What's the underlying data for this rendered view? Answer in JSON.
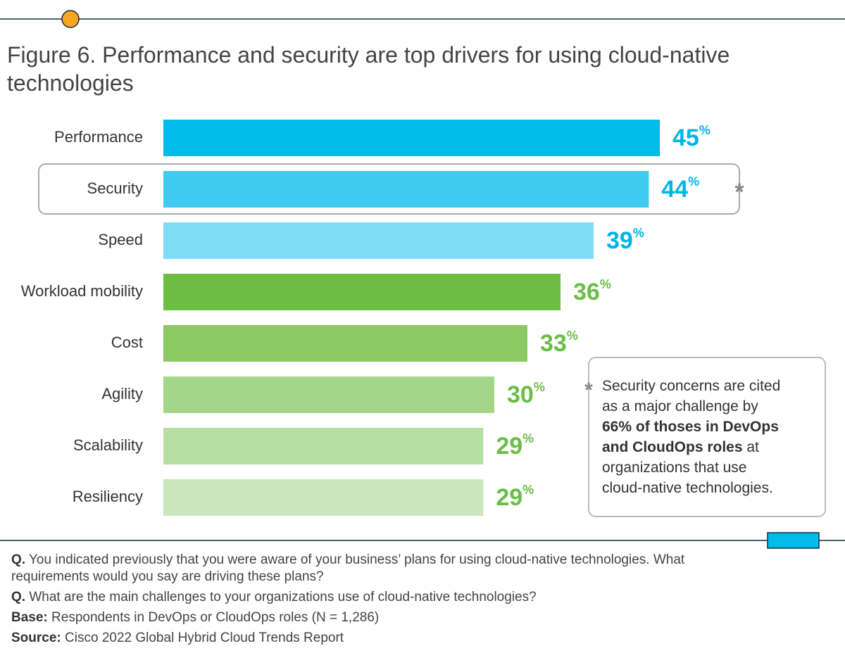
{
  "chart_data": {
    "type": "bar",
    "orientation": "horizontal",
    "title": "Figure 6. Performance and security are top drivers for using cloud-native technologies",
    "categories": [
      "Performance",
      "Security",
      "Speed",
      "Workload mobility",
      "Cost",
      "Agility",
      "Scalability",
      "Resiliency"
    ],
    "values": [
      45,
      44,
      39,
      36,
      33,
      30,
      29,
      29
    ],
    "value_labels": [
      "45%",
      "44%",
      "39%",
      "36%",
      "33%",
      "30%",
      "29%",
      "29%"
    ],
    "colors": [
      "#00bceb",
      "#3fcbef",
      "#7fdcf5",
      "#6dbd45",
      "#8ac964",
      "#a4d68a",
      "#b7dea3",
      "#cbe6bb"
    ],
    "label_colors": [
      "#00b4e6",
      "#00b4e6",
      "#00b4e6",
      "#6abd45",
      "#6abd45",
      "#6abd45",
      "#6abd45",
      "#6abd45"
    ],
    "highlight_category": "Security",
    "highlight_marker": "*",
    "note_lines": [
      [
        {
          "text": "Security concerns are cited",
          "bold": false
        }
      ],
      [
        {
          "text": "as a major challenge by",
          "bold": false
        }
      ],
      [
        {
          "text": "66% of thoses in DevOps",
          "bold": true
        }
      ],
      [
        {
          "text": "and CloudOps roles",
          "bold": true
        },
        {
          "text": " at",
          "bold": false
        }
      ],
      [
        {
          "text": "organizations that use",
          "bold": false
        }
      ],
      [
        {
          "text": "cloud-native technologies.",
          "bold": false
        }
      ]
    ],
    "footnotes": [
      {
        "label": "Q.",
        "text": "You indicated previously that you were aware of your business’ plans for using cloud-native technologies. What requirements would you say are driving these plans?"
      },
      {
        "label": "Q.",
        "text": "What are the main challenges to your organizations use of cloud-native technologies?"
      },
      {
        "label": "Base:",
        "text": "Respondents in DevOps or CloudOps roles (N = 1,286)"
      },
      {
        "label": "Source:",
        "text": "Cisco 2022 Global Hybrid Cloud Trends Report"
      }
    ]
  }
}
